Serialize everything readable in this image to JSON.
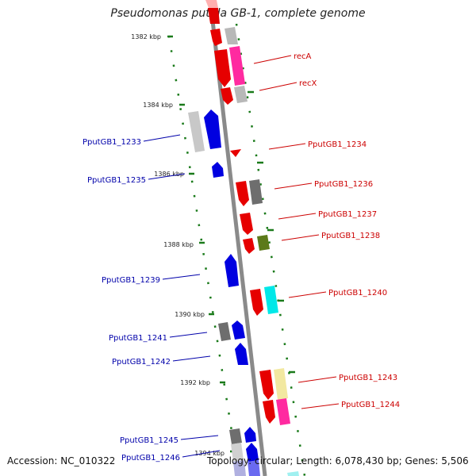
{
  "title": "Pseudomonas putida GB-1, complete genome",
  "footer": {
    "accession": "Accession: NC_010322",
    "summary": "Topology: circular; Length: 6,078,430 bp; Genes: 5,506"
  },
  "colors": {
    "forward_label": "#cc0000",
    "reverse_label": "#0000aa",
    "backbone": "#8a8a8a",
    "tick": "#1a7a1a"
  },
  "scale_labels": [
    "1382 kbp",
    "1384 kbp",
    "1386 kbp",
    "1388 kbp",
    "1390 kbp",
    "1392 kbp",
    "1394 kbp"
  ],
  "gene_labels_right": [
    "recA",
    "recX",
    "PputGB1_1234",
    "PputGB1_1236",
    "PputGB1_1237",
    "PputGB1_1238",
    "PputGB1_1240",
    "PputGB1_1243",
    "PputGB1_1244"
  ],
  "gene_labels_left": [
    "PputGB1_1233",
    "PputGB1_1235",
    "PputGB1_1239",
    "PputGB1_1241",
    "PputGB1_1242",
    "PputGB1_1245",
    "PputGB1_1246"
  ]
}
